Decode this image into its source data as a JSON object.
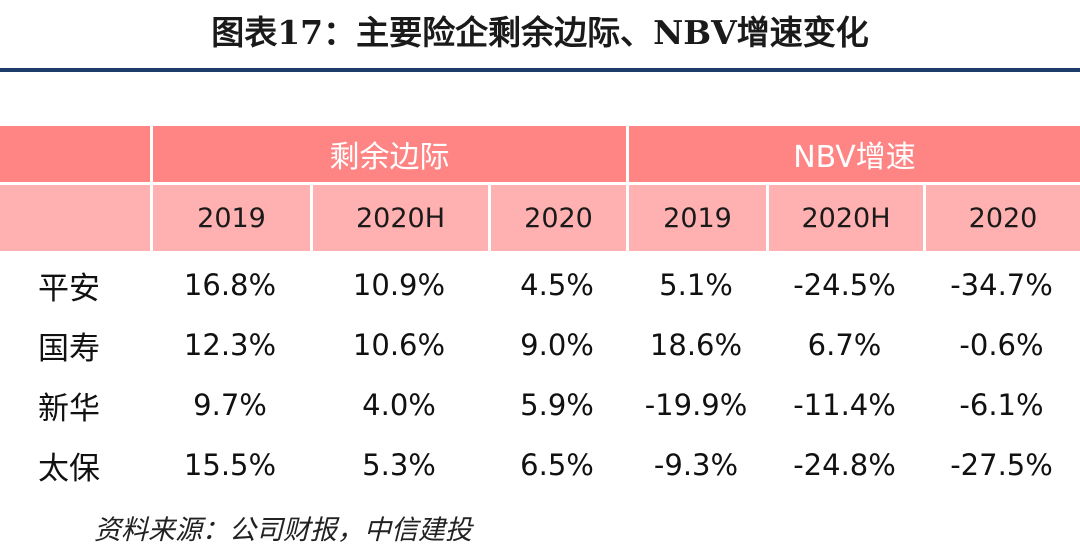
{
  "title": "图表17：主要险企剩余边际、NBV增速变化",
  "groups": {
    "surplus_margin": "剩余边际",
    "nbv_growth": "NBV增速"
  },
  "periods": [
    "2019",
    "2020H",
    "2020",
    "2019",
    "2020H",
    "2020"
  ],
  "rows": [
    {
      "name": "平安",
      "values": [
        "16.8%",
        "10.9%",
        "4.5%",
        "5.1%",
        "-24.5%",
        "-34.7%"
      ]
    },
    {
      "name": "国寿",
      "values": [
        "12.3%",
        "10.6%",
        "9.0%",
        "18.6%",
        "6.7%",
        "-0.6%"
      ]
    },
    {
      "name": "新华",
      "values": [
        "9.7%",
        "4.0%",
        "5.9%",
        "-19.9%",
        "-11.4%",
        "-6.1%"
      ]
    },
    {
      "name": "太保",
      "values": [
        "15.5%",
        "5.3%",
        "6.5%",
        "-9.3%",
        "-24.8%",
        "-27.5%"
      ]
    }
  ],
  "source": "资料来源：公司财报，中信建投",
  "colors": {
    "header_dark": "#ff8585",
    "header_light": "#ffb0b0",
    "title_rule": "#1f3d6b"
  }
}
